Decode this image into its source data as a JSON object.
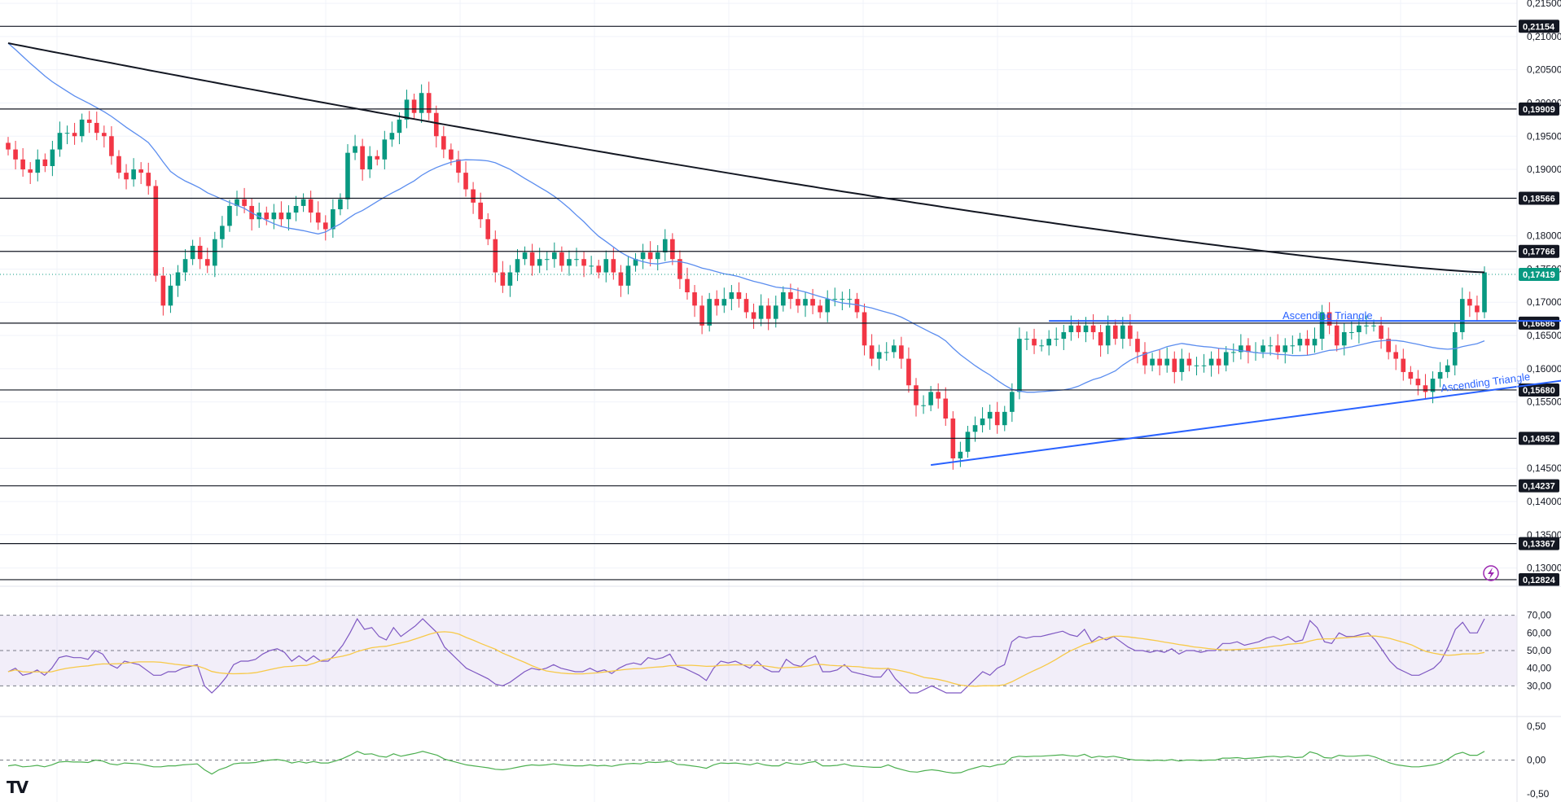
{
  "chart_data": {
    "type": "candlestick",
    "symbol_logo": "TV",
    "price_axis": {
      "min": 0.1275,
      "max": 0.2155,
      "ticks": [
        "0,21500",
        "0,21000",
        "0,20500",
        "0,20000",
        "0,19500",
        "0,19000",
        "0,18000",
        "0,17500",
        "0,17000",
        "0,16500",
        "0,16000",
        "0,15500",
        "0,14500",
        "0,14000",
        "0,13500",
        "0,13000"
      ],
      "tick_values": [
        0.215,
        0.21,
        0.205,
        0.2,
        0.195,
        0.19,
        0.18,
        0.175,
        0.17,
        0.165,
        0.16,
        0.155,
        0.145,
        0.14,
        0.135,
        0.13
      ]
    },
    "horizontal_levels": [
      {
        "label": "0,21154",
        "value": 0.21154
      },
      {
        "label": "0,19909",
        "value": 0.19909
      },
      {
        "label": "0,18566",
        "value": 0.18566
      },
      {
        "label": "0,17766",
        "value": 0.17766
      },
      {
        "label": "0,16686",
        "value": 0.16686
      },
      {
        "label": "0,15680",
        "value": 0.1568
      },
      {
        "label": "0,14952",
        "value": 0.14952
      },
      {
        "label": "0,14237",
        "value": 0.14237
      },
      {
        "label": "0,13367",
        "value": 0.13367
      },
      {
        "label": "0,12824",
        "value": 0.12824
      }
    ],
    "current_price": {
      "label": "0,17419",
      "value": 0.17419
    },
    "annotations": [
      "Ascending Triangle",
      "Ascending Triangle"
    ],
    "triangle_upper_value": 0.1672,
    "triangle_lower_start": 0.1455,
    "triangle_lower_end": 0.1608,
    "closes": [
      0.193,
      0.1915,
      0.19,
      0.1895,
      0.1915,
      0.1905,
      0.193,
      0.1955,
      0.1955,
      0.195,
      0.1975,
      0.197,
      0.1955,
      0.195,
      0.192,
      0.1895,
      0.1885,
      0.19,
      0.1895,
      0.1875,
      0.174,
      0.1695,
      0.1725,
      0.1745,
      0.1765,
      0.1785,
      0.1765,
      0.1755,
      0.1795,
      0.1815,
      0.1845,
      0.1855,
      0.1845,
      0.1825,
      0.1835,
      0.1825,
      0.1835,
      0.1825,
      0.1835,
      0.1845,
      0.1855,
      0.1835,
      0.182,
      0.181,
      0.184,
      0.1855,
      0.1925,
      0.1935,
      0.19,
      0.192,
      0.1915,
      0.1945,
      0.1955,
      0.1975,
      0.2005,
      0.1985,
      0.2015,
      0.1985,
      0.195,
      0.193,
      0.1915,
      0.1895,
      0.187,
      0.185,
      0.1825,
      0.1795,
      0.1745,
      0.1725,
      0.1745,
      0.1765,
      0.1775,
      0.1755,
      0.1765,
      0.1765,
      0.1775,
      0.1755,
      0.1765,
      0.1765,
      0.1755,
      0.1755,
      0.1745,
      0.1765,
      0.1745,
      0.1725,
      0.1755,
      0.1765,
      0.1775,
      0.1765,
      0.1775,
      0.1795,
      0.1765,
      0.1735,
      0.1715,
      0.1695,
      0.1665,
      0.1705,
      0.1695,
      0.1705,
      0.1715,
      0.1705,
      0.1685,
      0.1675,
      0.1695,
      0.1675,
      0.1695,
      0.1715,
      0.1705,
      0.1695,
      0.1705,
      0.1695,
      0.1685,
      0.1705,
      0.1705,
      0.1705,
      0.1705,
      0.1685,
      0.1635,
      0.1615,
      0.1625,
      0.1625,
      0.1635,
      0.1615,
      0.1575,
      0.1545,
      0.1545,
      0.1565,
      0.1555,
      0.1525,
      0.1465,
      0.1475,
      0.1505,
      0.1515,
      0.1525,
      0.1535,
      0.1515,
      0.1535,
      0.1565,
      0.1645,
      0.1645,
      0.1635,
      0.1635,
      0.1645,
      0.1645,
      0.1655,
      0.1665,
      0.1655,
      0.1665,
      0.1655,
      0.1635,
      0.1665,
      0.1645,
      0.1665,
      0.1645,
      0.1625,
      0.1605,
      0.1615,
      0.1605,
      0.1615,
      0.1595,
      0.1615,
      0.1605,
      0.1605,
      0.1605,
      0.1615,
      0.1605,
      0.1625,
      0.1625,
      0.1635,
      0.1625,
      0.1625,
      0.1635,
      0.1635,
      0.1625,
      0.1635,
      0.1635,
      0.1645,
      0.1635,
      0.1645,
      0.1685,
      0.1665,
      0.1635,
      0.1655,
      0.1655,
      0.1665,
      0.1665,
      0.1665,
      0.1645,
      0.1625,
      0.1615,
      0.1595,
      0.1585,
      0.1575,
      0.1565,
      0.1585,
      0.1595,
      0.1605,
      0.1655,
      0.1705,
      0.1695,
      0.1685,
      0.1745
    ],
    "ma_blue": {
      "start": 0.209,
      "end": 0.164
    },
    "ma_black": {
      "start": 0.209,
      "end": 0.1745
    },
    "rsi": {
      "ticks": [
        "70,00",
        "60,00",
        "50,00",
        "40,00",
        "30,00"
      ],
      "tick_values": [
        70,
        60,
        50,
        40,
        30
      ],
      "overbought": 70,
      "mid": 50,
      "oversold": 30,
      "values": [
        38,
        40,
        36,
        37,
        39,
        36,
        40,
        46,
        47,
        46,
        46,
        45,
        50,
        48,
        42,
        40,
        44,
        43,
        42,
        39,
        36,
        36,
        38,
        38,
        40,
        41,
        42,
        30,
        21,
        30,
        35,
        42,
        44,
        44,
        45,
        48,
        50,
        51,
        49,
        44,
        47,
        44,
        47,
        44,
        44,
        48,
        53,
        60,
        68,
        62,
        63,
        58,
        56,
        63,
        58,
        61,
        64,
        68,
        64,
        60,
        52,
        48,
        44,
        40,
        38,
        36,
        34,
        31,
        30,
        32,
        35,
        38,
        40,
        39,
        40,
        42,
        40,
        39,
        38,
        38,
        40,
        38,
        39,
        37,
        40,
        42,
        43,
        42,
        46,
        45,
        46,
        48,
        41,
        40,
        38,
        36,
        33,
        40,
        44,
        43,
        44,
        42,
        40,
        44,
        40,
        38,
        38,
        45,
        42,
        41,
        45,
        47,
        38,
        38,
        39,
        42,
        38,
        37,
        36,
        35,
        35,
        40,
        34,
        30,
        26,
        25,
        28,
        30,
        28,
        25,
        23,
        24,
        30,
        34,
        38,
        36,
        40,
        42,
        55,
        58,
        57,
        58,
        58,
        59,
        60,
        61,
        59,
        58,
        62,
        55,
        58,
        56,
        58,
        55,
        52,
        50,
        50,
        49,
        50,
        49,
        51,
        48,
        50,
        50,
        49,
        50,
        50,
        54,
        54,
        55,
        53,
        54,
        55,
        57,
        58,
        56,
        58,
        55,
        56,
        67,
        63,
        55,
        54,
        60,
        58,
        58,
        59,
        60,
        56,
        50,
        44,
        40,
        38,
        36,
        36,
        38,
        40,
        44,
        52,
        62,
        66,
        60,
        60,
        68
      ],
      "signal": {
        "start": 30,
        "peak_index": 57,
        "peak": 60
      }
    },
    "oscillator": {
      "ticks": [
        "0,50",
        "0,00",
        "-0,50"
      ],
      "tick_values": [
        0.5,
        0,
        -0.5
      ],
      "zero": 0
    }
  }
}
